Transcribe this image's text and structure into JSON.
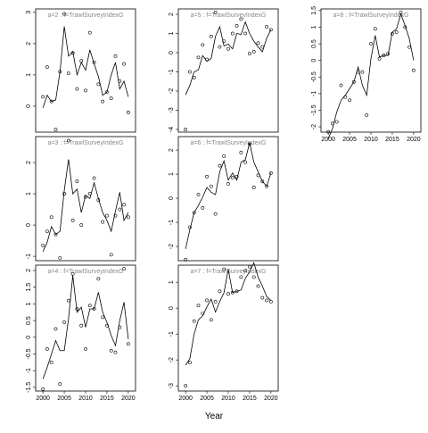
{
  "xlabel": "Year",
  "chart_data": [
    {
      "type": "line",
      "title": "a=2 : f=TrawlSurveyIndexG",
      "xlim": [
        1998.3,
        2021.7
      ],
      "ylim": [
        -0.83,
        3.11
      ],
      "yticks": [
        0,
        1,
        2,
        3
      ],
      "x": [
        2000,
        2001,
        2002,
        2003,
        2004,
        2005,
        2006,
        2007,
        2008,
        2009,
        2010,
        2011,
        2012,
        2013,
        2014,
        2015,
        2016,
        2017,
        2018,
        2019,
        2020
      ],
      "series": [
        {
          "style": "points",
          "values": [
            0.3,
            1.25,
            0.15,
            -0.75,
            1.1,
            2.95,
            1.05,
            1.7,
            0.55,
            1.45,
            0.5,
            2.35,
            1.4,
            0.7,
            0.15,
            0.45,
            0.25,
            1.6,
            0.8,
            1.35,
            -0.2
          ]
        },
        {
          "style": "line",
          "values": [
            -0.05,
            0.35,
            0.15,
            0.2,
            1.1,
            2.55,
            1.6,
            1.75,
            1.0,
            1.4,
            1.15,
            1.8,
            1.35,
            0.95,
            0.35,
            0.45,
            1.0,
            1.4,
            0.55,
            0.8,
            0.3
          ]
        }
      ]
    },
    {
      "type": "line",
      "title": "a=3 : f=TrawlSurveyIndexG",
      "xlim": [
        1998.3,
        2021.7
      ],
      "ylim": [
        -1.14,
        2.83
      ],
      "yticks": [
        -1,
        0,
        1,
        2
      ],
      "x": [
        2000,
        2001,
        2002,
        2003,
        2004,
        2005,
        2006,
        2007,
        2008,
        2009,
        2010,
        2011,
        2012,
        2013,
        2014,
        2015,
        2016,
        2017,
        2018,
        2019,
        2020
      ],
      "series": [
        {
          "style": "points",
          "values": [
            -0.65,
            -0.2,
            0.25,
            -0.3,
            -1.05,
            1.0,
            2.7,
            0.15,
            1.4,
            0.0,
            0.9,
            1.0,
            1.5,
            0.8,
            0.1,
            0.3,
            -0.95,
            0.3,
            0.5,
            0.65,
            0.25
          ]
        },
        {
          "style": "line",
          "values": [
            -0.85,
            -0.55,
            -0.05,
            -0.3,
            -0.2,
            1.1,
            2.1,
            1.0,
            1.15,
            0.4,
            0.95,
            0.85,
            1.35,
            0.85,
            0.4,
            0.15,
            -0.2,
            0.45,
            1.05,
            0.15,
            0.4
          ]
        }
      ]
    },
    {
      "type": "line",
      "title": "a=4 : f=TrawlSurveyIndexG",
      "xlim": [
        1998.3,
        2021.7
      ],
      "ylim": [
        -1.61,
        2.16
      ],
      "yticks": [
        -1.5,
        -1,
        -0.5,
        0,
        0.5,
        1,
        1.5,
        2
      ],
      "xticks": [
        2000,
        2005,
        2010,
        2015,
        2020
      ],
      "x": [
        2000,
        2001,
        2002,
        2003,
        2004,
        2005,
        2006,
        2007,
        2008,
        2009,
        2010,
        2011,
        2012,
        2013,
        2014,
        2015,
        2016,
        2017,
        2018,
        2019,
        2020
      ],
      "series": [
        {
          "style": "points",
          "values": [
            -1.55,
            -0.35,
            -0.75,
            0.25,
            -1.4,
            0.45,
            1.1,
            1.9,
            0.85,
            0.35,
            -0.35,
            0.95,
            0.85,
            1.75,
            0.6,
            0.35,
            -0.4,
            -0.45,
            0.3,
            2.05,
            -0.2
          ]
        },
        {
          "style": "line",
          "values": [
            -1.25,
            -0.9,
            -0.5,
            -0.1,
            -0.4,
            -0.4,
            0.55,
            1.85,
            0.75,
            0.9,
            0.3,
            0.85,
            0.85,
            1.35,
            0.75,
            0.45,
            0.05,
            -0.25,
            0.5,
            1.05,
            -0.05
          ]
        }
      ]
    },
    {
      "type": "line",
      "title": "a=5 : f=TrawlSurveyIndexG",
      "xlim": [
        1998.3,
        2021.7
      ],
      "ylim": [
        -4.14,
        2.28
      ],
      "yticks": [
        -4,
        -3,
        -2,
        -1,
        0,
        1,
        2
      ],
      "x": [
        2000,
        2001,
        2002,
        2003,
        2004,
        2005,
        2006,
        2007,
        2008,
        2009,
        2010,
        2011,
        2012,
        2013,
        2014,
        2015,
        2016,
        2017,
        2018,
        2019,
        2020
      ],
      "series": [
        {
          "style": "points",
          "values": [
            -4.0,
            -1.0,
            -1.3,
            -0.25,
            0.4,
            -0.35,
            0.85,
            2.1,
            0.3,
            0.6,
            0.2,
            1.0,
            1.4,
            1.75,
            1.0,
            -0.05,
            0.05,
            0.5,
            0.3,
            1.35,
            1.2
          ]
        },
        {
          "style": "line",
          "values": [
            -2.2,
            -1.7,
            -1.0,
            -0.9,
            -0.15,
            -0.45,
            -0.3,
            0.85,
            1.35,
            0.35,
            0.45,
            0.2,
            1.0,
            0.95,
            1.6,
            1.0,
            0.6,
            0.3,
            0.05,
            0.75,
            1.2
          ]
        }
      ]
    },
    {
      "type": "line",
      "title": "a=6 : f=TrawlSurveyIndexG",
      "xlim": [
        1998.3,
        2021.7
      ],
      "ylim": [
        -2.59,
        2.56
      ],
      "yticks": [
        -2,
        -1,
        0,
        1,
        2
      ],
      "x": [
        2000,
        2001,
        2002,
        2003,
        2004,
        2005,
        2006,
        2007,
        2008,
        2009,
        2010,
        2011,
        2012,
        2013,
        2014,
        2015,
        2016,
        2017,
        2018,
        2019,
        2020
      ],
      "series": [
        {
          "style": "points",
          "values": [
            -2.55,
            -1.2,
            -0.6,
            0.15,
            -0.4,
            0.9,
            0.5,
            -0.65,
            1.35,
            1.75,
            0.6,
            0.85,
            0.9,
            1.9,
            1.5,
            2.25,
            0.45,
            0.95,
            0.7,
            0.5,
            1.05
          ]
        },
        {
          "style": "line",
          "values": [
            -2.1,
            -1.3,
            -0.6,
            -0.3,
            0.05,
            0.45,
            0.25,
            0.15,
            1.1,
            1.55,
            0.75,
            1.05,
            0.75,
            1.5,
            1.6,
            2.3,
            1.5,
            1.1,
            0.7,
            0.5,
            1.05
          ]
        }
      ]
    },
    {
      "type": "line",
      "title": "a=7 : f=TrawlSurveyIndexG",
      "xlim": [
        1998.3,
        2021.7
      ],
      "ylim": [
        -3.2,
        1.66
      ],
      "yticks": [
        -3,
        -2,
        -1,
        0,
        1
      ],
      "xticks": [
        2000,
        2005,
        2010,
        2015,
        2020
      ],
      "x": [
        2000,
        2001,
        2002,
        2003,
        2004,
        2005,
        2006,
        2007,
        2008,
        2009,
        2010,
        2011,
        2012,
        2013,
        2014,
        2015,
        2016,
        2017,
        2018,
        2019,
        2020
      ],
      "series": [
        {
          "style": "points",
          "values": [
            -3.0,
            -2.1,
            -0.5,
            0.1,
            -0.2,
            0.3,
            -0.45,
            0.25,
            0.65,
            1.5,
            0.55,
            0.6,
            0.65,
            1.2,
            1.45,
            1.6,
            1.2,
            0.85,
            0.4,
            0.3,
            0.25
          ]
        },
        {
          "style": "line",
          "values": [
            -2.2,
            -1.95,
            -1.0,
            -0.45,
            -0.3,
            0.05,
            0.35,
            -0.15,
            0.25,
            0.6,
            1.5,
            0.6,
            0.65,
            0.7,
            1.15,
            1.4,
            1.75,
            1.2,
            0.85,
            0.45,
            0.3
          ]
        }
      ]
    },
    {
      "type": "line",
      "title": "a=8 : f=TrawlSurveyIndexG",
      "xlim": [
        1998.3,
        2021.7
      ],
      "ylim": [
        -2.16,
        1.55
      ],
      "yticks": [
        -2,
        -1.5,
        -1,
        -0.5,
        0,
        0.5,
        1,
        1.5
      ],
      "xticks": [
        2000,
        2005,
        2010,
        2015,
        2020
      ],
      "x": [
        2000,
        2001,
        2002,
        2003,
        2004,
        2005,
        2006,
        2007,
        2008,
        2009,
        2010,
        2011,
        2012,
        2013,
        2014,
        2015,
        2016,
        2017,
        2018,
        2019,
        2020
      ],
      "series": [
        {
          "style": "points",
          "values": [
            -2.15,
            -1.9,
            -1.85,
            -0.75,
            -1.1,
            -1.2,
            -0.65,
            -0.35,
            -0.35,
            -1.65,
            0.5,
            0.95,
            0.05,
            0.15,
            0.2,
            0.8,
            0.85,
            1.45,
            1.0,
            0.4,
            -0.3
          ]
        },
        {
          "style": "line",
          "values": [
            -2.35,
            -2.05,
            -1.55,
            -1.2,
            -1.05,
            -0.85,
            -0.65,
            -0.2,
            -0.75,
            -1.05,
            0.05,
            0.75,
            0.1,
            0.15,
            0.15,
            0.85,
            0.95,
            1.4,
            1.05,
            0.65,
            0.0
          ]
        }
      ]
    }
  ]
}
